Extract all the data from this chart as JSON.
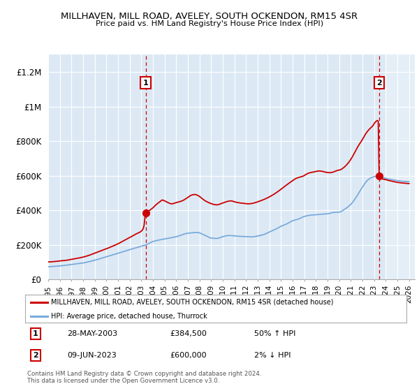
{
  "title": "MILLHAVEN, MILL ROAD, AVELEY, SOUTH OCKENDON, RM15 4SR",
  "subtitle": "Price paid vs. HM Land Registry's House Price Index (HPI)",
  "sale1_date": "28-MAY-2003",
  "sale1_price": 384500,
  "sale1_hpi": "50% ↑ HPI",
  "sale1_label": "1",
  "sale2_date": "09-JUN-2023",
  "sale2_price": 600000,
  "sale2_hpi": "2% ↓ HPI",
  "sale2_label": "2",
  "legend_line1": "MILLHAVEN, MILL ROAD, AVELEY, SOUTH OCKENDON, RM15 4SR (detached house)",
  "legend_line2": "HPI: Average price, detached house, Thurrock",
  "footnote": "Contains HM Land Registry data © Crown copyright and database right 2024.\nThis data is licensed under the Open Government Licence v3.0.",
  "red_color": "#cc0000",
  "blue_color": "#7aabdb",
  "chart_bg": "#dce9f5",
  "sale_vline_color": "#cc0000",
  "background_color": "#ffffff",
  "grid_color": "#ffffff",
  "hatch_color": "#aaaaaa",
  "ylim": [
    0,
    1300000
  ],
  "yticks": [
    0,
    200000,
    400000,
    600000,
    800000,
    1000000,
    1200000
  ],
  "ytick_labels": [
    "£0",
    "£200K",
    "£400K",
    "£600K",
    "£800K",
    "£1M",
    "£1.2M"
  ],
  "xmin": 1995.0,
  "xmax": 2026.5,
  "sale1_x": 2003.38,
  "sale2_x": 2023.44,
  "hatch_xstart": 2024.0,
  "hatch_xend": 2026.5
}
